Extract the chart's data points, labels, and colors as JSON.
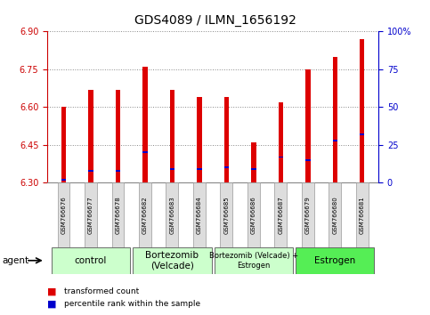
{
  "title": "GDS4089 / ILMN_1656192",
  "samples": [
    "GSM766676",
    "GSM766677",
    "GSM766678",
    "GSM766682",
    "GSM766683",
    "GSM766684",
    "GSM766685",
    "GSM766686",
    "GSM766687",
    "GSM766679",
    "GSM766680",
    "GSM766681"
  ],
  "transformed_count": [
    6.6,
    6.67,
    6.67,
    6.76,
    6.67,
    6.64,
    6.64,
    6.46,
    6.62,
    6.75,
    6.8,
    6.87
  ],
  "percentile_rank": [
    0.02,
    0.08,
    0.08,
    0.2,
    0.09,
    0.09,
    0.1,
    0.09,
    0.17,
    0.15,
    0.28,
    0.32
  ],
  "ymin": 6.3,
  "ymax": 6.9,
  "yticks": [
    6.3,
    6.45,
    6.6,
    6.75,
    6.9
  ],
  "y2min": 0,
  "y2max": 100,
  "y2ticks": [
    0,
    25,
    50,
    75,
    100
  ],
  "y2ticklabels": [
    "0",
    "25",
    "50",
    "75",
    "100%"
  ],
  "bar_color": "#DD0000",
  "percentile_color": "#0000CC",
  "bar_width": 0.18,
  "groups": [
    {
      "label": "control",
      "start": 0,
      "end": 2,
      "color": "#CCFFCC"
    },
    {
      "label": "Bortezomib\n(Velcade)",
      "start": 3,
      "end": 5,
      "color": "#CCFFCC"
    },
    {
      "label": "Bortezomib (Velcade) +\nEstrogen",
      "start": 6,
      "end": 8,
      "color": "#CCFFCC"
    },
    {
      "label": "Estrogen",
      "start": 9,
      "end": 11,
      "color": "#55EE55"
    }
  ],
  "background_color": "#FFFFFF",
  "grid_color": "#888888",
  "tick_label_color_left": "#CC0000",
  "tick_label_color_right": "#0000CC",
  "title_fontsize": 10
}
